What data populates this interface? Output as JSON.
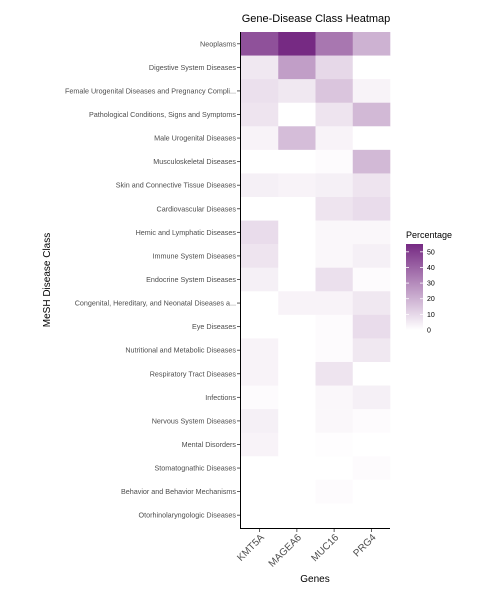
{
  "chart_data": {
    "type": "heatmap",
    "title": "Gene-Disease Class Heatmap",
    "xlabel": "Genes",
    "ylabel": "MeSH Disease Class",
    "columns": [
      "KMT5A",
      "MAGEA6",
      "MUC16",
      "PRG4"
    ],
    "rows": [
      "Neoplasms",
      "Digestive System Diseases",
      "Female Urogenital Diseases and Pregnancy Compli...",
      "Pathological Conditions, Signs and Symptoms",
      "Male Urogenital Diseases",
      "Musculoskeletal Diseases",
      "Skin and Connective Tissue Diseases",
      "Cardiovascular Diseases",
      "Hemic and Lymphatic Diseases",
      "Immune System Diseases",
      "Endocrine System Diseases",
      "Congenital, Hereditary, and Neonatal Diseases a...",
      "Eye Diseases",
      "Nutritional and Metabolic Diseases",
      "Respiratory Tract Diseases",
      "Infections",
      "Nervous System Diseases",
      "Mental Disorders",
      "Stomatognathic Diseases",
      "Behavior and Behavior Mechanisms",
      "Otorhinolaryngologic Diseases"
    ],
    "values": [
      [
        45,
        55,
        35,
        20
      ],
      [
        6,
        25,
        10,
        0
      ],
      [
        8,
        6,
        15,
        3
      ],
      [
        7,
        0,
        7,
        18
      ],
      [
        3,
        17,
        3,
        0
      ],
      [
        0,
        0,
        1,
        18
      ],
      [
        4,
        3,
        4,
        7
      ],
      [
        0,
        0,
        7,
        9
      ],
      [
        9,
        0,
        2,
        2
      ],
      [
        7,
        0,
        2,
        4
      ],
      [
        4,
        0,
        8,
        1
      ],
      [
        0,
        3,
        3,
        6
      ],
      [
        0,
        0,
        1,
        9
      ],
      [
        3,
        0,
        1,
        6
      ],
      [
        3,
        0,
        7,
        0
      ],
      [
        1,
        0,
        2,
        4
      ],
      [
        4,
        0,
        2,
        1
      ],
      [
        3,
        0,
        0.5,
        0
      ],
      [
        0,
        0,
        0,
        1
      ],
      [
        0,
        0,
        1,
        0
      ],
      [
        0,
        0,
        0,
        0
      ]
    ],
    "legend": {
      "title": "Percentage",
      "ticks": [
        0,
        10,
        20,
        30,
        40,
        50
      ],
      "range": [
        0,
        55
      ],
      "low_color": "#ffffff",
      "high_color": "#762a83"
    }
  }
}
